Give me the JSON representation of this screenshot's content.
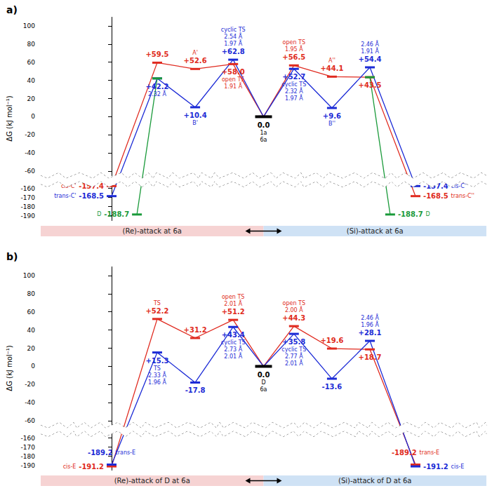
{
  "chart_data": [
    {
      "type": "line",
      "title": "a)",
      "y_label": "ΔG (kJ mol⁻¹)",
      "xlim": [
        -2.8,
        14.8
      ],
      "ylim": [
        -195,
        110
      ],
      "yticks": [
        100,
        80,
        60,
        40,
        20,
        0,
        -20,
        -40,
        -60,
        -160,
        -170,
        -180,
        -190
      ],
      "tick_labels": "y",
      "grid": false,
      "data_labels": true,
      "bands": [
        {
          "label": "(Re)-attack at 6a",
          "color": "#f6d3d3"
        },
        {
          "label": "(Si)-attack at 6a",
          "color": "#cfe2f5"
        }
      ],
      "series": [
        {
          "color": "#e02b20",
          "x": [
            6,
            4.8,
            3.3,
            1.8,
            0
          ],
          "values": [
            0,
            58.0,
            52.6,
            59.5,
            -157.4
          ],
          "value_labels": [
            null,
            "+58.0",
            "+52.6",
            "+59.5",
            "-157.4"
          ],
          "structures": [
            null,
            [
              "open TS",
              "1.91 Å"
            ],
            [
              "A'"
            ],
            null,
            [
              "cis-C'"
            ]
          ]
        },
        {
          "color": "#1c2bd6",
          "x": [
            6,
            4.8,
            3.3,
            1.8,
            0
          ],
          "values": [
            0,
            62.8,
            10.4,
            42.2,
            -168.5
          ],
          "value_labels": [
            null,
            "+62.8",
            "+10.4",
            "+42.2",
            "-168.5"
          ],
          "structures": [
            null,
            [
              "cyclic TS",
              "2.54 Å",
              "1.97 Å"
            ],
            [
              "B'"
            ],
            [
              "2.32 Å"
            ],
            [
              "trans-C'"
            ]
          ]
        },
        {
          "color": "#1a9a3a",
          "x": [
            1.8,
            1.0
          ],
          "values": [
            42.2,
            -188.7
          ],
          "value_labels": [
            null,
            "-188.7"
          ],
          "structures": [
            null,
            [
              "D"
            ]
          ]
        },
        {
          "color": "#e02b20",
          "x": [
            6,
            7.2,
            8.7,
            10.2,
            12
          ],
          "values": [
            0,
            56.5,
            44.1,
            43.5,
            -168.5
          ],
          "value_labels": [
            null,
            "+56.5",
            "+44.1",
            "+43.5",
            "-168.5"
          ],
          "structures": [
            null,
            [
              "open TS",
              "1.95 Å"
            ],
            [
              "A''"
            ],
            null,
            [
              "trans-C''"
            ]
          ]
        },
        {
          "color": "#1c2bd6",
          "x": [
            6,
            7.2,
            8.7,
            10.2,
            12
          ],
          "values": [
            0,
            52.7,
            9.6,
            54.4,
            -157.4
          ],
          "value_labels": [
            null,
            "+52.7",
            "+9.6",
            "+54.4",
            "-157.4"
          ],
          "structures": [
            null,
            [
              "cyclic TS",
              "2.32 Å",
              "1.97 Å"
            ],
            [
              "B''"
            ],
            [
              "2.46 Å",
              "1.91 Å"
            ],
            [
              "cis-C''"
            ]
          ]
        },
        {
          "color": "#1a9a3a",
          "x": [
            10.2,
            11
          ],
          "values": [
            43.5,
            -188.7
          ],
          "value_labels": [
            null,
            "-188.7"
          ],
          "structures": [
            null,
            [
              "D"
            ]
          ]
        },
        {
          "color": "#000000",
          "x": [
            6
          ],
          "values": [
            0
          ],
          "value_labels": [
            "0.0"
          ],
          "structures": [
            [
              "1a",
              "6a"
            ]
          ]
        }
      ]
    },
    {
      "type": "line",
      "title": "b)",
      "y_label": "ΔG (kJ mol⁻¹)",
      "xlim": [
        -2.8,
        14.8
      ],
      "ylim": [
        -195,
        110
      ],
      "yticks": [
        100,
        80,
        60,
        40,
        20,
        0,
        -20,
        -40,
        -60,
        -160,
        -170,
        -180,
        -190
      ],
      "tick_labels": "y",
      "grid": false,
      "data_labels": true,
      "bands": [
        {
          "label": "(Re)-attack of D at 6a",
          "color": "#f6d3d3"
        },
        {
          "label": "(Si)-attack of D at 6a",
          "color": "#cfe2f5"
        }
      ],
      "series": [
        {
          "color": "#e02b20",
          "x": [
            6,
            4.8,
            3.3,
            1.8,
            0
          ],
          "values": [
            0,
            51.2,
            31.2,
            52.2,
            -191.2
          ],
          "value_labels": [
            null,
            "+51.2",
            "+31.2",
            "+52.2",
            "-191.2"
          ],
          "structures": [
            null,
            [
              "open TS",
              "2.01 Å"
            ],
            null,
            [
              "TS"
            ],
            [
              "cis-E"
            ]
          ]
        },
        {
          "color": "#1c2bd6",
          "x": [
            6,
            4.8,
            3.3,
            1.8,
            0
          ],
          "values": [
            0,
            43.4,
            -17.8,
            15.3,
            -189.2
          ],
          "value_labels": [
            null,
            "+43.4",
            "-17.8",
            "+15.3",
            "-189.2"
          ],
          "structures": [
            null,
            [
              "cyclic TS",
              "2.73 Å",
              "2.01 Å"
            ],
            null,
            [
              "TS",
              "2.33 Å",
              "1.96 Å"
            ],
            [
              "trans-E"
            ]
          ]
        },
        {
          "color": "#e02b20",
          "x": [
            6,
            7.2,
            8.7,
            10.2,
            12
          ],
          "values": [
            0,
            44.3,
            19.6,
            18.7,
            -189.2
          ],
          "value_labels": [
            null,
            "+44.3",
            "+19.6",
            "+18.7",
            "-189.2"
          ],
          "structures": [
            null,
            [
              "open TS",
              "2.00 Å"
            ],
            null,
            null,
            [
              "trans-E"
            ]
          ]
        },
        {
          "color": "#1c2bd6",
          "x": [
            6,
            7.2,
            8.7,
            10.2,
            12
          ],
          "values": [
            0,
            35.8,
            -13.6,
            28.1,
            -191.2
          ],
          "value_labels": [
            null,
            "+35.8",
            "-13.6",
            "+28.1",
            "-191.2"
          ],
          "structures": [
            null,
            [
              "cyclic TS",
              "2.77 Å",
              "2.01 Å"
            ],
            null,
            [
              "2.46 Å",
              "1.96 Å"
            ],
            [
              "cis-E"
            ]
          ]
        },
        {
          "color": "#000000",
          "x": [
            6
          ],
          "values": [
            0
          ],
          "value_labels": [
            "0.0"
          ],
          "structures": [
            [
              "D",
              "6a"
            ]
          ]
        }
      ]
    }
  ]
}
